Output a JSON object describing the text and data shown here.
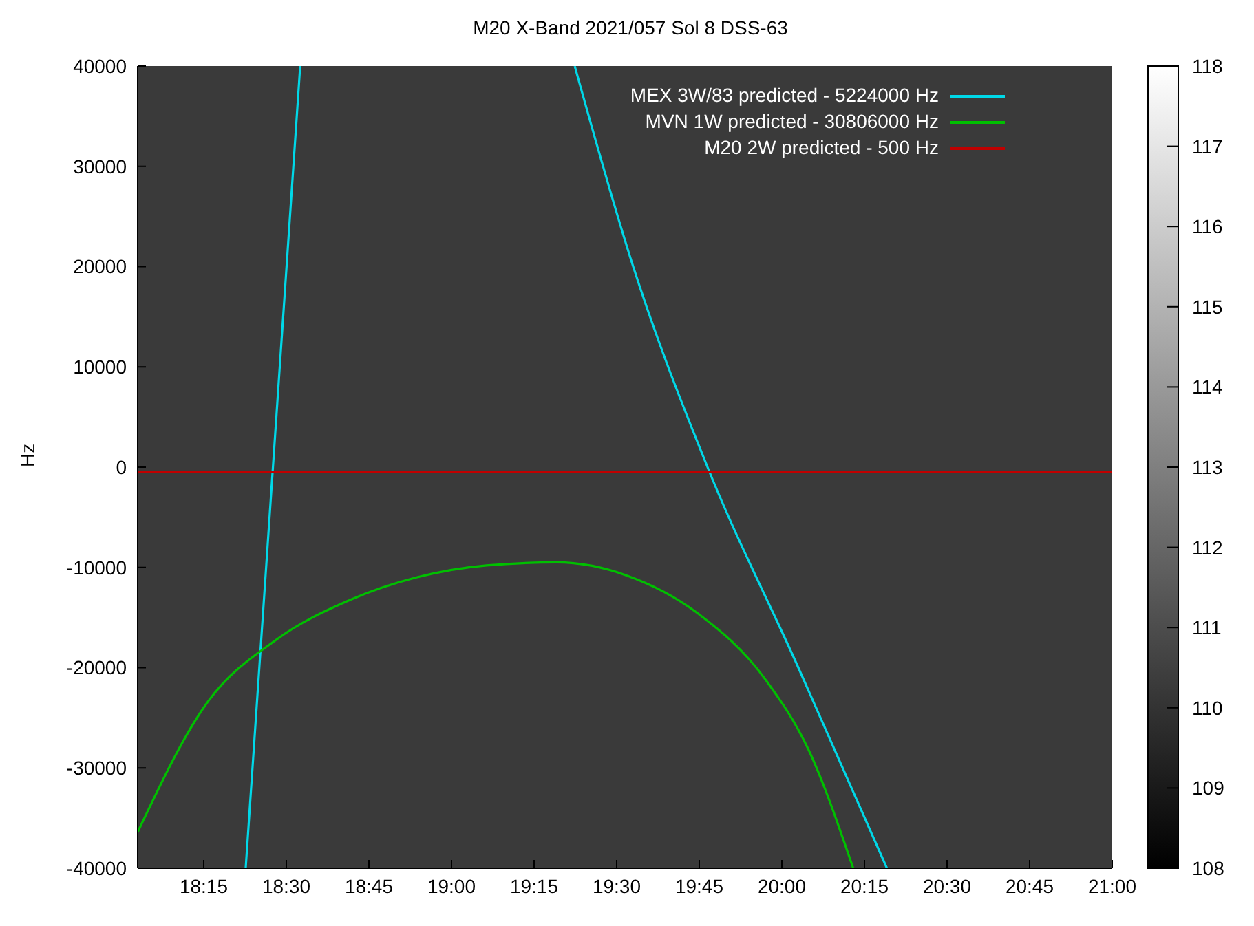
{
  "chart_data": {
    "type": "line",
    "title": "M20 X-Band 2021/057 Sol 8 DSS-63",
    "ylabel": "Hz",
    "xlim": [
      18.05,
      21
    ],
    "xticks": [
      {
        "value": 18.25,
        "label": "18:15"
      },
      {
        "value": 18.5,
        "label": "18:30"
      },
      {
        "value": 18.75,
        "label": "18:45"
      },
      {
        "value": 19,
        "label": "19:00"
      },
      {
        "value": 19.25,
        "label": "19:15"
      },
      {
        "value": 19.5,
        "label": "19:30"
      },
      {
        "value": 19.75,
        "label": "19:45"
      },
      {
        "value": 20,
        "label": "20:00"
      },
      {
        "value": 20.25,
        "label": "20:15"
      },
      {
        "value": 20.5,
        "label": "20:30"
      },
      {
        "value": 20.75,
        "label": "20:45"
      },
      {
        "value": 21,
        "label": "21:00"
      }
    ],
    "ylim": [
      -40000,
      40000
    ],
    "yticks": [
      -40000,
      -30000,
      -20000,
      -10000,
      0,
      10000,
      20000,
      30000,
      40000
    ],
    "clim": [
      108,
      118
    ],
    "cticks": [
      108,
      109,
      110,
      111,
      112,
      113,
      114,
      115,
      116,
      117,
      118
    ],
    "legend": "top right",
    "series": [
      {
        "name": "MEX 3W/83 predicted - 5224000 Hz",
        "color": "#00d8e8",
        "x": [
          18.377,
          18.542,
          18.9,
          19.373,
          19.55,
          19.775,
          20.05,
          20.318
        ],
        "values": [
          -40000,
          40000,
          null,
          40000,
          20000,
          0,
          -20000,
          -40000
        ]
      },
      {
        "name": "MVN 1W predicted - 30806000 Hz",
        "color": "#00c000",
        "x": [
          18.05,
          18.258,
          18.47,
          18.682,
          18.894,
          19.106,
          19.318,
          19.53,
          19.742,
          19.953,
          20.081,
          20.216
        ],
        "values": [
          -36400,
          -23600,
          -17200,
          -13400,
          -11000,
          -9800,
          -9500,
          -10800,
          -14500,
          -21300,
          -28200,
          -40000
        ]
      },
      {
        "name": "M20 2W predicted - 500 Hz",
        "color": "#c00000",
        "x": [
          18.05,
          21
        ],
        "values": [
          -500,
          -500
        ]
      }
    ]
  }
}
